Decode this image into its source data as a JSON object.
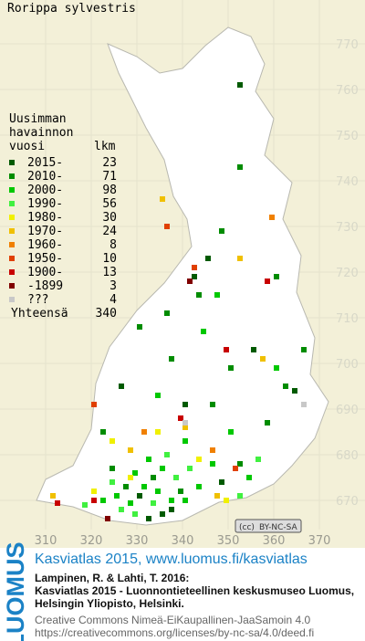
{
  "title": "Rorippa sylvestris",
  "legend": {
    "heading": [
      "Uusimman",
      "havainnon",
      "vuosi"
    ],
    "count_heading": "lkm",
    "rows": [
      {
        "label": "2015-",
        "count": 23,
        "color": "#005a00"
      },
      {
        "label": "2010-",
        "count": 71,
        "color": "#008c00"
      },
      {
        "label": "2000-",
        "count": 98,
        "color": "#00c800"
      },
      {
        "label": "1990-",
        "count": 56,
        "color": "#40f040"
      },
      {
        "label": "1980-",
        "count": 30,
        "color": "#f0f000"
      },
      {
        "label": "1970-",
        "count": 24,
        "color": "#f0c000"
      },
      {
        "label": "1960-",
        "count": 8,
        "color": "#f08000"
      },
      {
        "label": "1950-",
        "count": 10,
        "color": "#e04000"
      },
      {
        "label": "1900-",
        "count": 13,
        "color": "#c80000"
      },
      {
        "label": "-1899",
        "count": 3,
        "color": "#800000"
      },
      {
        "label": "???",
        "count": 4,
        "color": "#c8c8c8"
      }
    ],
    "total_label": "Yhteensä",
    "total": 340
  },
  "y_axis": [
    770,
    760,
    750,
    740,
    730,
    720,
    710,
    700,
    690,
    680,
    670
  ],
  "x_axis": [
    310,
    320,
    330,
    340,
    350,
    360,
    370
  ],
  "license_badge": "BY-NC-SA",
  "footer": {
    "brand": "LUOMUS",
    "headline": "Kasviatlas 2015, www.luomus.fi/kasviatlas",
    "citation": [
      "Lampinen, R. & Lahti, T. 2016:",
      "Kasviatlas 2015 - Luonnontieteellinen keskusmuseo Luomus,",
      "Helsingin Yliopisto, Helsinki."
    ],
    "license": [
      "Creative Commons Nimeä-EiKaupallinen-JaaSamoin 4.0",
      "https://creativecommons.org/licenses/by-nc-sa/4.0/deed.fi"
    ]
  }
}
